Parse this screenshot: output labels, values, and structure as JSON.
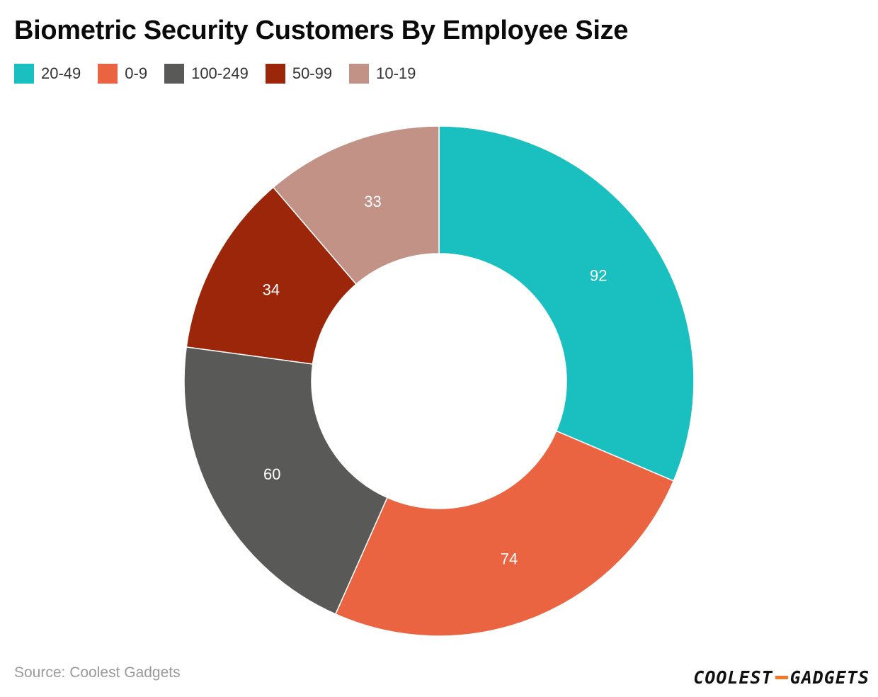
{
  "source": "Source: Coolest Gadgets",
  "logo": {
    "part1": "COOLEST",
    "part2": "GADGETS",
    "dash_color": "#f0772c"
  },
  "chart_data": {
    "type": "pie",
    "variant": "donut",
    "title": "Biometric Security Customers By Employee Size",
    "legend_position": "top-left",
    "slices": [
      {
        "label": "20-49",
        "value": 92,
        "color": "#1abfbf"
      },
      {
        "label": "0-9",
        "value": 74,
        "color": "#eb6441"
      },
      {
        "label": "100-249",
        "value": 60,
        "color": "#595957"
      },
      {
        "label": "50-99",
        "value": 34,
        "color": "#9c260a"
      },
      {
        "label": "10-19",
        "value": 33,
        "color": "#c29287"
      }
    ]
  }
}
